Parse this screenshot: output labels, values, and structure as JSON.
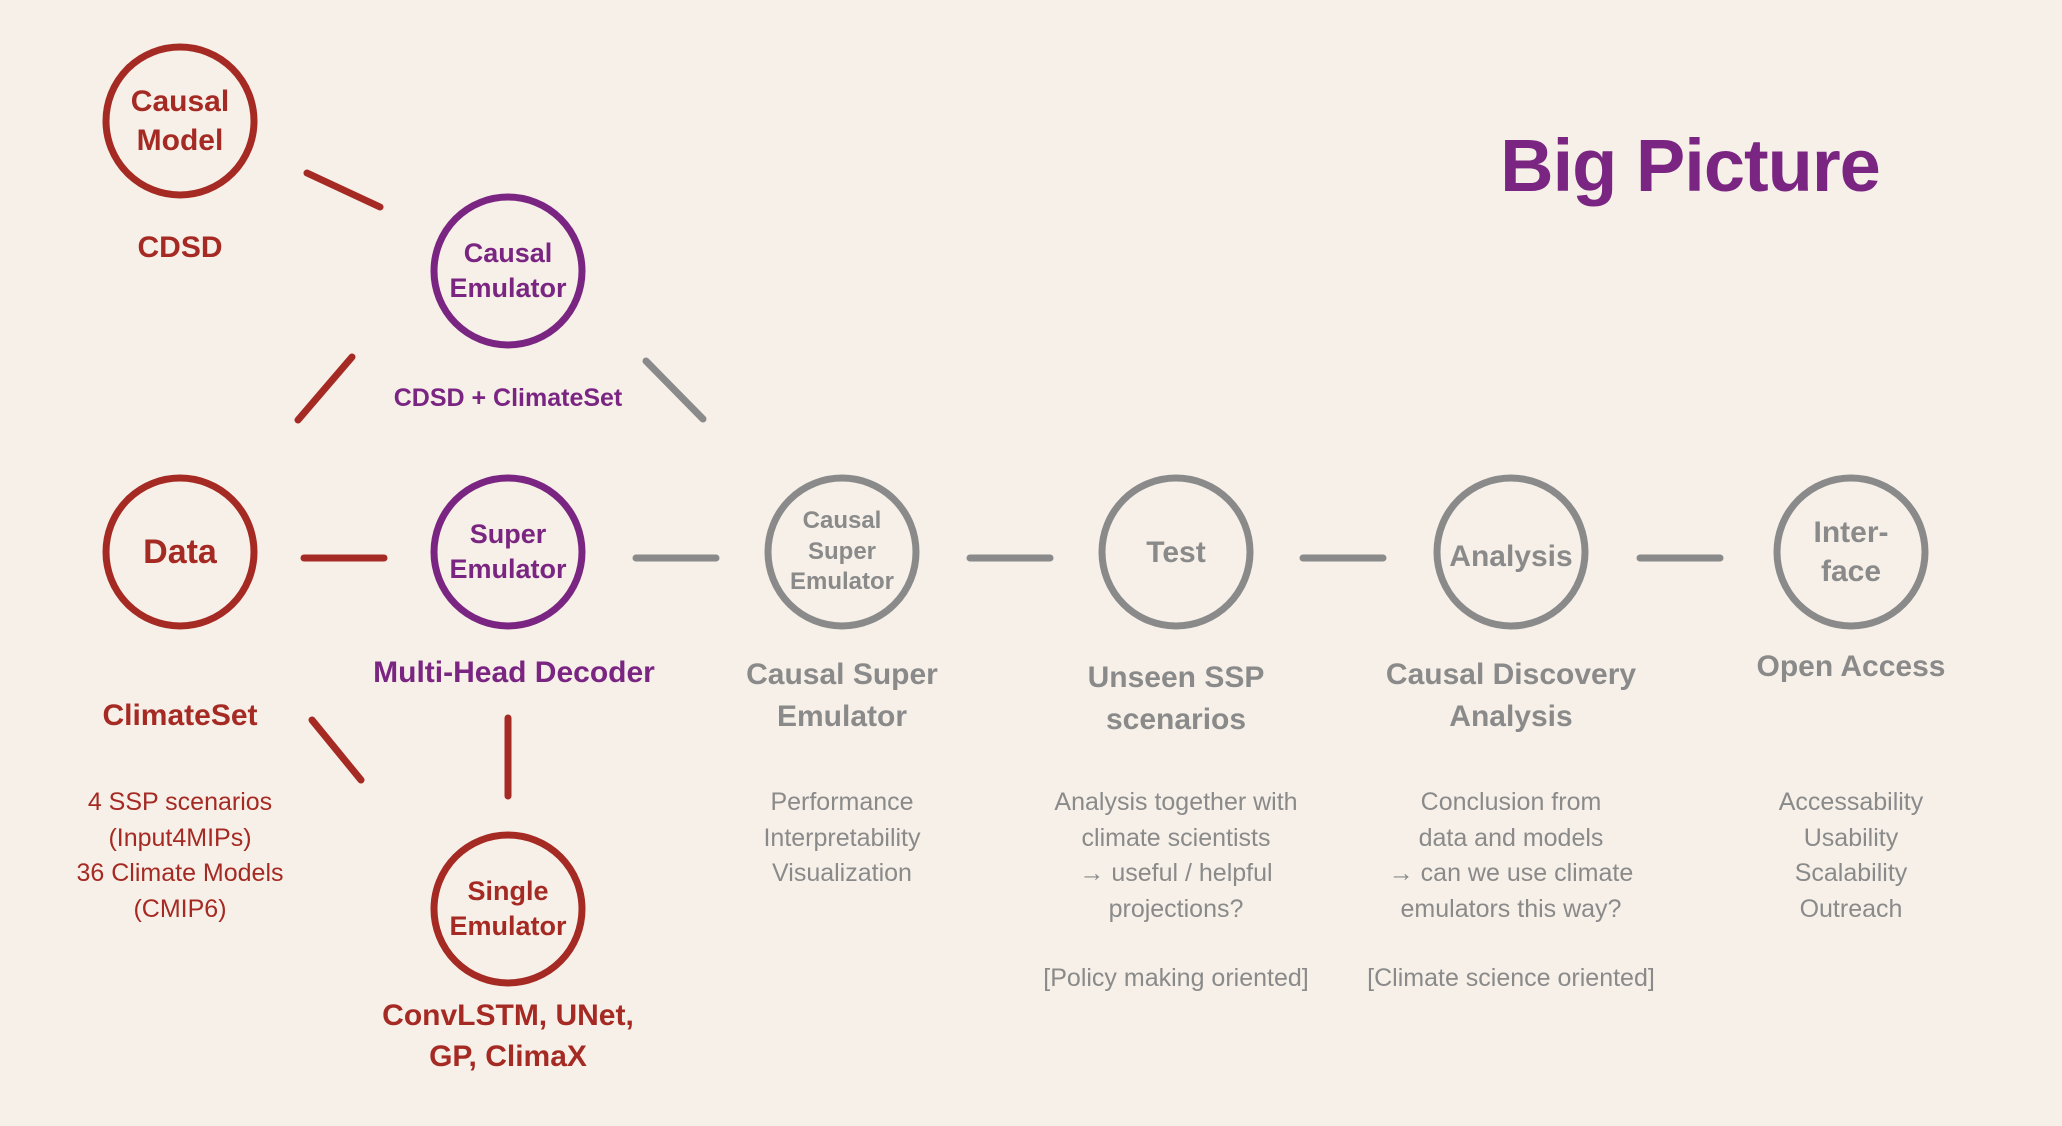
{
  "title": "Big Picture",
  "colors": {
    "background": "#f6f0e8",
    "red": "#a52a23",
    "purple": "#7a2581",
    "gray": "#8a8a8a"
  },
  "nodes": {
    "causal_model": "Causal\nModel",
    "causal_emulator": "Causal\nEmulator",
    "data": "Data",
    "super_emulator": "Super\nEmulator",
    "causal_super_emulator": "Causal\nSuper\nEmulator",
    "test": "Test",
    "analysis": "Analysis",
    "interface": "Inter-\nface",
    "single_emulator": "Single\nEmulator"
  },
  "labels": {
    "cdsd": "CDSD",
    "cdsd_climateset": "CDSD + ClimateSet",
    "climateset": "ClimateSet",
    "multi_head_decoder": "Multi-Head Decoder",
    "causal_super_emulator": "Causal Super\nEmulator",
    "unseen_ssp": "Unseen SSP\nscenarios",
    "causal_discovery": "Causal Discovery\nAnalysis",
    "open_access": "Open Access",
    "convlstm": "ConvLSTM, UNet,\nGP, ClimaX"
  },
  "descriptions": {
    "climateset": "4 SSP scenarios\n(Input4MIPs)\n36 Climate Models\n(CMIP6)",
    "causal_super_emulator": "Performance\nInterpretability\nVisualization",
    "unseen_ssp": "Analysis together with\nclimate scientists\n→ useful / helpful\nprojections?",
    "unseen_ssp_note": "[Policy making oriented]",
    "causal_discovery": "Conclusion from\ndata and models\n→ can we use climate\nemulators this way?",
    "causal_discovery_note": "[Climate science oriented]",
    "open_access": "Accessability\nUsability\nScalability\nOutreach"
  }
}
